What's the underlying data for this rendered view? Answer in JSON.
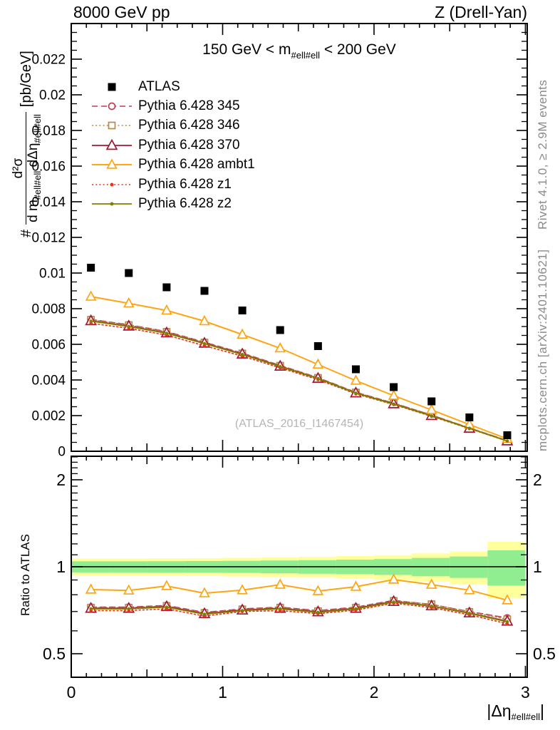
{
  "header": {
    "left": "8000 GeV pp",
    "right": "Z (Drell-Yan)"
  },
  "title": {
    "pre": "150 GeV < m",
    "sub": "#ell#ell",
    "post": " < 200 GeV"
  },
  "notes": {
    "rivet": "Rivet 4.1.0, ≥ 2.9M events",
    "mcplots": "mcplots.cern.ch [arXiv:2401.10621]"
  },
  "watermark": "(ATLAS_2016_I1467454)",
  "ylabel": {
    "prefix": "#",
    "num": "d²σ",
    "den_pre": "d m",
    "den_sub1": "#ell#ell",
    "den_mid": " dΔη",
    "den_sub2": "#ell#ell",
    "units": "[pb/GeV]"
  },
  "ratio_ylabel": "Ratio to ATLAS",
  "xlabel": {
    "pre": "|Δη",
    "sub": "#ell#ell",
    "post": "|"
  },
  "chart_data": {
    "type": "line",
    "title": "150 GeV < m_#ell#ell < 200 GeV",
    "xlabel": "|delta-eta_ll|",
    "ylabel": "# d2sigma / (d m_ll dDelta-eta_ll) [pb/GeV]",
    "xlim": [
      0,
      3.012
    ],
    "ylim_main": [
      0,
      0.024
    ],
    "ylim_ratio": [
      0.42,
      2.42
    ],
    "ratio_scale": "log",
    "x": [
      0.13,
      0.38,
      0.63,
      0.88,
      1.13,
      1.38,
      1.63,
      1.88,
      2.13,
      2.38,
      2.63,
      2.88
    ],
    "series": [
      {
        "name": "ATLAS",
        "color": "#000000",
        "marker": "square-filled",
        "line": "none",
        "msize": 11,
        "lw": 1.6,
        "values": [
          0.0103,
          0.01,
          0.0092,
          0.009,
          0.0079,
          0.0068,
          0.0059,
          0.0046,
          0.0036,
          0.0028,
          0.0019,
          0.0009
        ],
        "ratio": null
      },
      {
        "name": "Pythia 6.428 345",
        "color": "#c13b52",
        "marker": "circle-open",
        "line": "dash",
        "msize": 9,
        "lw": 1.6,
        "values": [
          0.0074,
          0.0071,
          0.00672,
          0.00612,
          0.00551,
          0.00482,
          0.00413,
          0.00331,
          0.0027,
          0.00203,
          0.00131,
          0.0006
        ],
        "ratio": [
          0.725,
          0.725,
          0.735,
          0.695,
          0.715,
          0.725,
          0.705,
          0.725,
          0.765,
          0.74,
          0.7,
          0.665
        ]
      },
      {
        "name": "Pythia 6.428 346",
        "color": "#b18c4a",
        "marker": "square-open",
        "line": "dot",
        "msize": 9,
        "lw": 1.6,
        "values": [
          0.00738,
          0.00708,
          0.0067,
          0.0061,
          0.00549,
          0.0048,
          0.00412,
          0.0033,
          0.0027,
          0.00204,
          0.00131,
          0.0006
        ],
        "ratio": [
          0.722,
          0.722,
          0.732,
          0.692,
          0.712,
          0.722,
          0.702,
          0.722,
          0.762,
          0.742,
          0.698,
          0.658
        ]
      },
      {
        "name": "Pythia 6.428 370",
        "color": "#a31832",
        "marker": "triangle-open",
        "line": "solid",
        "msize": 12,
        "lw": 1.7,
        "values": [
          0.00732,
          0.00702,
          0.00664,
          0.00606,
          0.00545,
          0.00477,
          0.00409,
          0.00327,
          0.00266,
          0.002,
          0.00129,
          0.00058
        ],
        "ratio": [
          0.718,
          0.718,
          0.728,
          0.688,
          0.708,
          0.718,
          0.698,
          0.718,
          0.758,
          0.732,
          0.692,
          0.648
        ]
      },
      {
        "name": "Pythia 6.428 ambt1",
        "color": "#ffa513",
        "marker": "triangle-open",
        "line": "solid",
        "msize": 11,
        "lw": 2,
        "values": [
          0.00868,
          0.0083,
          0.0079,
          0.0073,
          0.00655,
          0.00578,
          0.00487,
          0.00396,
          0.00312,
          0.00232,
          0.0015,
          0.0007
        ],
        "ratio": [
          0.834,
          0.828,
          0.858,
          0.81,
          0.83,
          0.867,
          0.824,
          0.853,
          0.903,
          0.867,
          0.83,
          0.766
        ]
      },
      {
        "name": "Pythia 6.428 z1",
        "color": "#e5341b",
        "marker": "dot",
        "line": "dot",
        "msize": 4.5,
        "lw": 1.6,
        "values": [
          0.00718,
          0.0069,
          0.00652,
          0.00592,
          0.00534,
          0.00468,
          0.00402,
          0.00322,
          0.00262,
          0.00196,
          0.00127,
          0.00057
        ],
        "ratio": [
          0.705,
          0.705,
          0.715,
          0.675,
          0.7,
          0.705,
          0.688,
          0.708,
          0.748,
          0.722,
          0.682,
          0.635
        ]
      },
      {
        "name": "Pythia 6.428 z2",
        "color": "#7f7f00",
        "marker": "dot",
        "line": "solid",
        "msize": 4.5,
        "lw": 1.8,
        "values": [
          0.0073,
          0.007,
          0.00662,
          0.00604,
          0.00543,
          0.00475,
          0.00408,
          0.00326,
          0.00265,
          0.00199,
          0.00129,
          0.00058
        ],
        "ratio": [
          0.715,
          0.715,
          0.725,
          0.685,
          0.705,
          0.715,
          0.695,
          0.715,
          0.755,
          0.73,
          0.69,
          0.645
        ]
      }
    ],
    "bands": {
      "edges": [
        0,
        0.25,
        0.5,
        0.75,
        1.0,
        1.25,
        1.5,
        1.75,
        2.0,
        2.25,
        2.5,
        2.75,
        3.0
      ],
      "yellow_hw": [
        0.068,
        0.068,
        0.069,
        0.071,
        0.074,
        0.078,
        0.083,
        0.089,
        0.097,
        0.112,
        0.13,
        0.22
      ],
      "green_hw": [
        0.044,
        0.044,
        0.045,
        0.046,
        0.048,
        0.051,
        0.054,
        0.058,
        0.063,
        0.073,
        0.085,
        0.14
      ],
      "yellow": "#ffff9e",
      "green": "#90ed90"
    },
    "axes": {
      "x": {
        "majors": [
          0,
          1,
          2,
          3
        ],
        "mediums": [
          0.5,
          1.5,
          2.5
        ],
        "minor_step": 0.1
      },
      "y_main": {
        "major_step": 0.002,
        "minor_step": 0.0005
      },
      "y_ratio": {
        "labeled": [
          0.5,
          1,
          2
        ],
        "minors": [
          0.6,
          0.7,
          0.8,
          0.9,
          1.1,
          1.2,
          1.3,
          1.4,
          1.5,
          1.6,
          1.7,
          1.8,
          1.9,
          2.1,
          2.2,
          2.3,
          2.4
        ]
      }
    },
    "colors": {
      "frame": "#000000",
      "ref_line": "#000000"
    }
  }
}
